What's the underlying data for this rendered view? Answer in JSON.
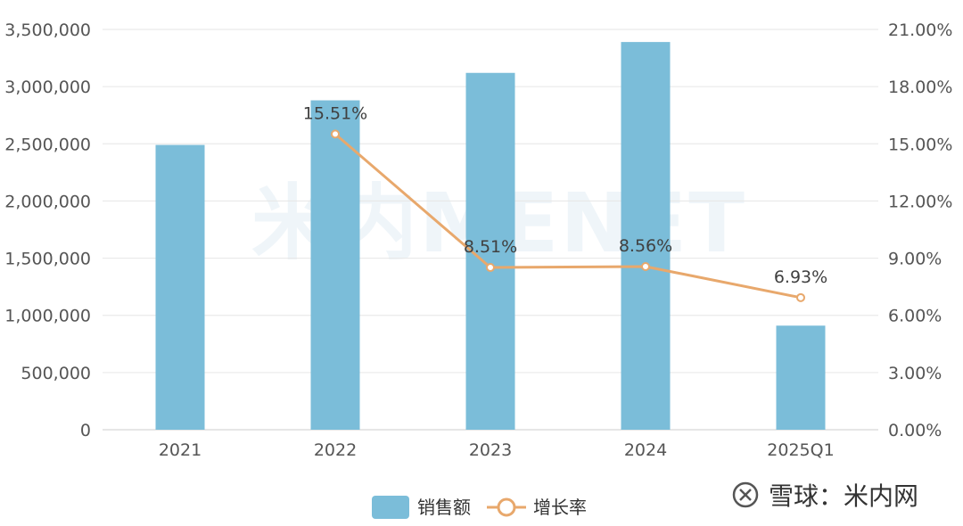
{
  "chart_data": {
    "type": "bar",
    "categories": [
      "2021",
      "2022",
      "2023",
      "2024",
      "2025Q1"
    ],
    "series": [
      {
        "name": "销售额",
        "kind": "bar",
        "axis": "left",
        "values": [
          2490000,
          2880000,
          3120000,
          3390000,
          910000
        ]
      },
      {
        "name": "增长率",
        "kind": "line",
        "axis": "right",
        "values": [
          null,
          15.51,
          8.51,
          8.56,
          6.93
        ],
        "labels": [
          "",
          "15.51%",
          "8.51%",
          "8.56%",
          "6.93%"
        ]
      }
    ],
    "left_axis": {
      "ylim": [
        0,
        3500000
      ],
      "ticks": [
        "0",
        "500,000",
        "1,000,000",
        "1,500,000",
        "2,000,000",
        "2,500,000",
        "3,000,000",
        "3,500,000"
      ]
    },
    "right_axis": {
      "ylim": [
        0,
        21
      ],
      "ticks": [
        "0.00%",
        "3.00%",
        "6.00%",
        "9.00%",
        "12.00%",
        "15.00%",
        "18.00%",
        "21.00%"
      ]
    },
    "grid": true,
    "legend_position": "bottom-center",
    "colors": {
      "bar": "#7bbdd9",
      "line": "#e8a86c",
      "grid": "#e6e6e6"
    }
  },
  "watermark": {
    "logo_text": "米内MENET",
    "brand": "雪球：米内网"
  }
}
